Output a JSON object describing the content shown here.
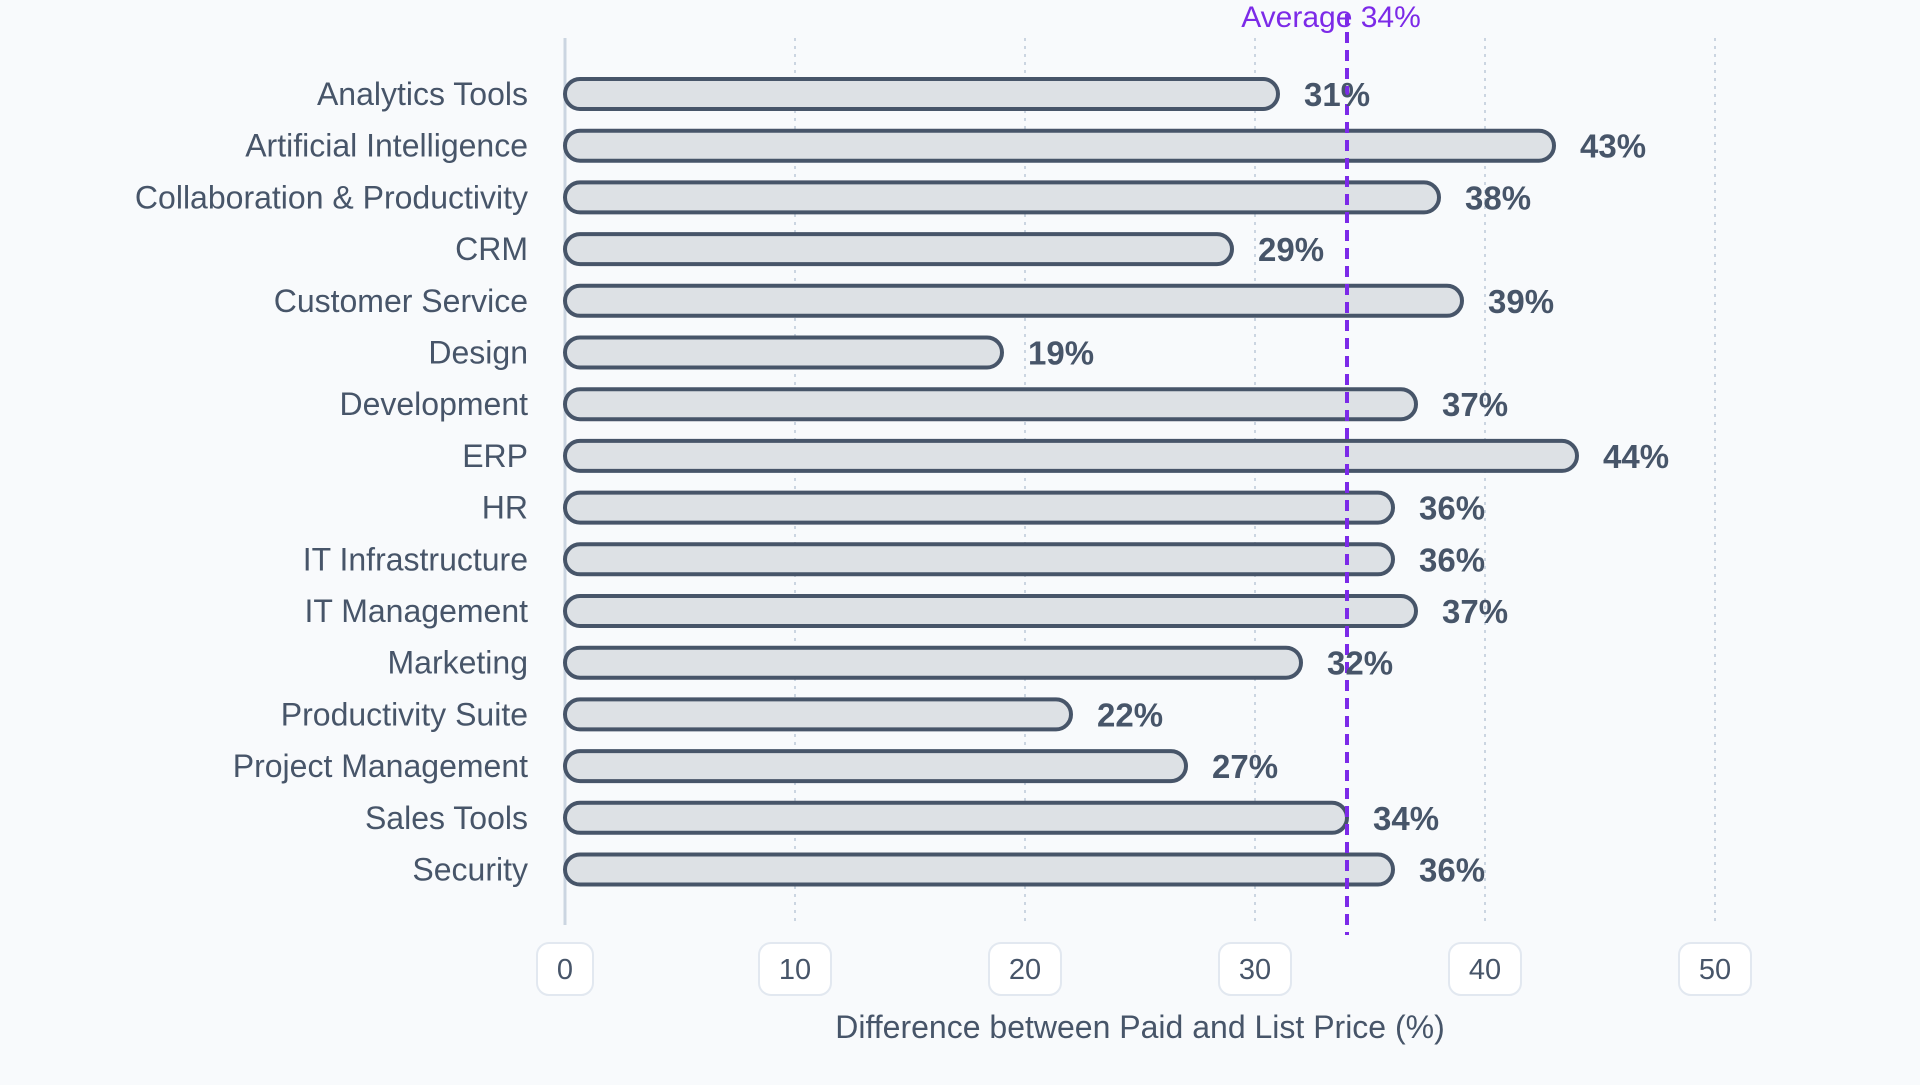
{
  "chart_data": {
    "type": "bar",
    "orientation": "horizontal",
    "categories": [
      "Analytics Tools",
      "Artificial Intelligence",
      "Collaboration & Productivity",
      "CRM",
      "Customer Service",
      "Design",
      "Development",
      "ERP",
      "HR",
      "IT Infrastructure",
      "IT Management",
      "Marketing",
      "Productivity Suite",
      "Project Management",
      "Sales Tools",
      "Security"
    ],
    "values": [
      31,
      43,
      38,
      29,
      39,
      19,
      37,
      44,
      36,
      36,
      37,
      32,
      22,
      27,
      34,
      36
    ],
    "value_labels": [
      "31%",
      "43%",
      "38%",
      "29%",
      "39%",
      "19%",
      "37%",
      "44%",
      "36%",
      "36%",
      "37%",
      "32%",
      "22%",
      "27%",
      "34%",
      "36%"
    ],
    "xlabel": "Difference between Paid and List Price (%)",
    "ylabel": "",
    "xlim": [
      0,
      50
    ],
    "xticks": [
      0,
      10,
      20,
      30,
      40,
      50
    ],
    "grid": "vertical dotted",
    "reference_line": {
      "value": 34,
      "label": "Average 34%",
      "style": "dashed",
      "color": "#7c2ae8"
    },
    "colors": {
      "bar_fill": "#dde1e5",
      "bar_stroke": "#475569",
      "text": "#475569",
      "background": "#f8fafc"
    }
  }
}
